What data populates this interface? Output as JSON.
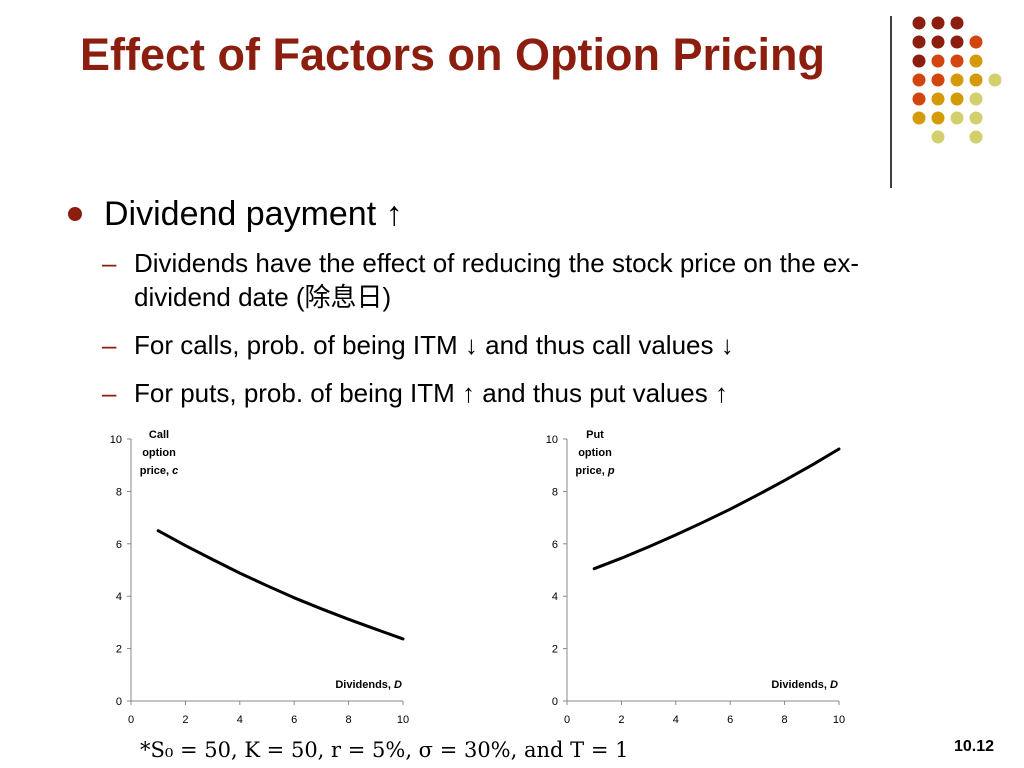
{
  "title": "Effect of Factors on Option Pricing",
  "bullet_main": "Dividend payment ↑",
  "sub_bullets": [
    {
      "dash": "–",
      "text": "Dividends have the effect of reducing the stock price on the ex-dividend date (除息日)"
    },
    {
      "dash": "–",
      "text": "For calls, prob. of being ITM ↓ and thus call values ↓"
    },
    {
      "dash": "–",
      "text": "For puts, prob. of being ITM ↑ and thus put values ↑"
    }
  ],
  "footnote": "*S₀ = 50, K = 50, r = 5%, σ = 30%, and T = 1",
  "slide_number": "10.12",
  "colors": {
    "title": "#8b1e0e",
    "dark_red": "#8b1e0e",
    "orange": "#d2450f",
    "gold": "#d49a08",
    "khaki": "#d3cf6d"
  },
  "chart_data": [
    {
      "type": "line",
      "title": "",
      "ylabel_lines": [
        "Call",
        "option",
        "price, c"
      ],
      "xlabel": "Dividends, D",
      "xlim": [
        0,
        10
      ],
      "ylim": [
        0,
        10
      ],
      "x_ticks": [
        0,
        2,
        4,
        6,
        8,
        10
      ],
      "y_ticks": [
        0,
        2,
        4,
        6,
        8,
        10
      ],
      "series": [
        {
          "x": [
            1,
            2,
            3,
            4,
            5,
            6,
            7,
            8,
            9,
            10
          ],
          "y": [
            6.5,
            5.93,
            5.4,
            4.88,
            4.4,
            3.94,
            3.52,
            3.12,
            2.74,
            2.37
          ]
        }
      ]
    },
    {
      "type": "line",
      "title": "",
      "ylabel_lines": [
        "Put",
        "option",
        "price, p"
      ],
      "xlabel": "Dividends, D",
      "xlim": [
        0,
        10
      ],
      "ylim": [
        0,
        10
      ],
      "x_ticks": [
        0,
        2,
        4,
        6,
        8,
        10
      ],
      "y_ticks": [
        0,
        2,
        4,
        6,
        8,
        10
      ],
      "series": [
        {
          "x": [
            1,
            2,
            3,
            4,
            5,
            6,
            7,
            8,
            9,
            10
          ],
          "y": [
            5.05,
            5.45,
            5.88,
            6.34,
            6.82,
            7.32,
            7.86,
            8.42,
            9.0,
            9.62
          ]
        }
      ]
    }
  ]
}
